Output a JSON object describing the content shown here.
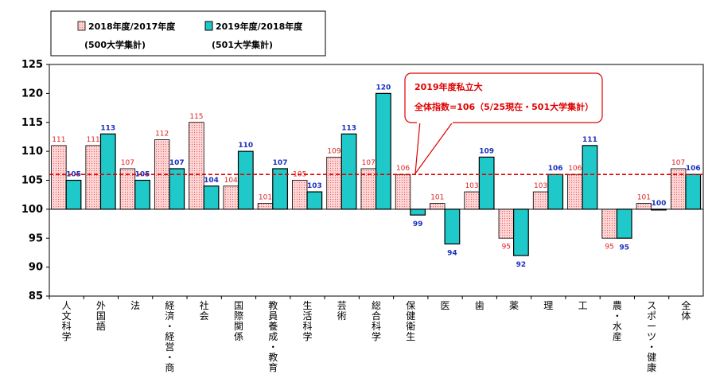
{
  "chart_data": {
    "type": "bar",
    "ylim": [
      85,
      125
    ],
    "yticks": [
      85,
      90,
      95,
      100,
      105,
      110,
      115,
      120,
      125
    ],
    "baseline": 100,
    "grid": false,
    "legend_position": "top-left",
    "categories": [
      "人文科学",
      "外国語",
      "法",
      "経済・経営・商",
      "社会",
      "国際関係",
      "教員養成・教育",
      "生活科学",
      "芸術",
      "総合科学",
      "保健衛生",
      "医",
      "歯",
      "薬",
      "理",
      "工",
      "農・水産",
      "スポーツ・健康",
      "全体"
    ],
    "series": [
      {
        "name": "2018年度/2017年度",
        "note": "(500大学集計)",
        "color": "#ffc8c8",
        "values": [
          111,
          111,
          107,
          112,
          115,
          104,
          101,
          105,
          109,
          107,
          106,
          101,
          103,
          95,
          103,
          106,
          95,
          101,
          107
        ]
      },
      {
        "name": "2019年度/2018年度",
        "note": "(501大学集計)",
        "color": "#1fc9c9",
        "values": [
          105,
          113,
          105,
          107,
          104,
          110,
          107,
          103,
          113,
          120,
          99,
          94,
          109,
          92,
          106,
          111,
          95,
          100,
          106
        ]
      }
    ],
    "reference_line": {
      "value": 106,
      "color": "#e00000"
    },
    "callout": {
      "line1": "2019年度私立大",
      "line2": "全体指数=106（5/25現在・501大学集計）"
    }
  }
}
